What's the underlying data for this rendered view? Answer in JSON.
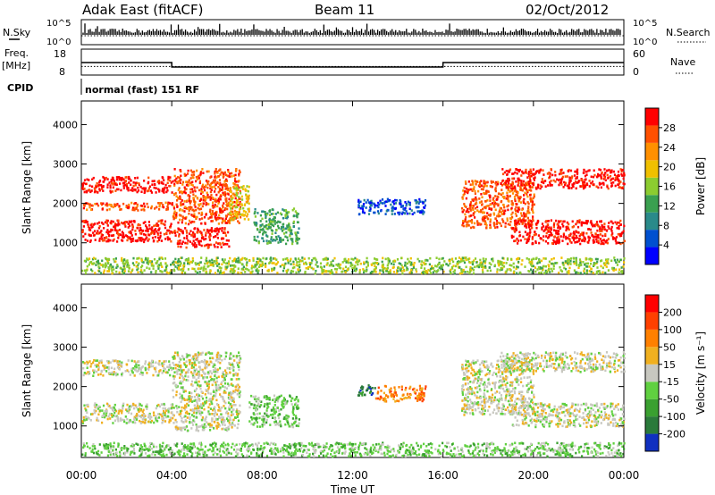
{
  "header": {
    "station": "Adak East (fitACF)",
    "beam": "Beam 11",
    "date": "02/Oct/2012"
  },
  "sky_panel": {
    "left_label": "N.Sky",
    "right_label": "N.Search",
    "left_ticks": [
      "10^5",
      "10^0"
    ],
    "right_ticks": [
      "10^5",
      "10^0"
    ]
  },
  "freq_panel": {
    "left_label_line1": "Freq.",
    "left_label_line2": "[MHz]",
    "right_label": "Nave",
    "left_ticks": [
      "18",
      "8"
    ],
    "right_ticks": [
      "60",
      "0"
    ],
    "cpid_label": "CPID",
    "mode_text": "normal (fast) 151 RF",
    "freq_segments": [
      {
        "from_hour": 0,
        "to_hour": 4,
        "mhz": 13.0
      },
      {
        "from_hour": 4,
        "to_hour": 16,
        "mhz": 10.5
      },
      {
        "from_hour": 16,
        "to_hour": 24,
        "mhz": 13.0
      }
    ],
    "nave_level": 20
  },
  "chart_data": [
    {
      "type": "heatmap",
      "name": "power",
      "ylabel": "Slant Range [km]",
      "y_ticks": [
        "1000",
        "2000",
        "3000",
        "4000"
      ],
      "ylim": [
        200,
        4600
      ],
      "xlim": [
        0,
        24
      ],
      "colorbar": {
        "label": "Power [dB]",
        "ticks": [
          "28",
          "24",
          "20",
          "16",
          "12",
          "8",
          "4"
        ],
        "colors": [
          "#0000ff",
          "#0050d0",
          "#2a8a8a",
          "#3aa050",
          "#8ccc30",
          "#f0c000",
          "#ff9000",
          "#ff5000",
          "#ff0000"
        ]
      },
      "regions": [
        {
          "x0": 0.0,
          "x1": 4.0,
          "y0": 2300,
          "y1": 2700,
          "level": 8
        },
        {
          "x0": 0.0,
          "x1": 4.0,
          "y0": 1050,
          "y1": 1600,
          "level": 8
        },
        {
          "x0": 0.0,
          "x1": 4.0,
          "y0": 1850,
          "y1": 2050,
          "level": 7
        },
        {
          "x0": 4.0,
          "x1": 7.0,
          "y0": 1500,
          "y1": 2900,
          "level": 7
        },
        {
          "x0": 4.0,
          "x1": 6.5,
          "y0": 900,
          "y1": 1400,
          "level": 8
        },
        {
          "x0": 6.5,
          "x1": 7.4,
          "y0": 1600,
          "y1": 2500,
          "level": 5
        },
        {
          "x0": 7.6,
          "x1": 9.6,
          "y0": 1000,
          "y1": 1900,
          "level": 3
        },
        {
          "x0": 12.2,
          "x1": 15.2,
          "y0": 1750,
          "y1": 2150,
          "level": 1
        },
        {
          "x0": 16.8,
          "x1": 20.0,
          "y0": 1400,
          "y1": 2600,
          "level": 7
        },
        {
          "x0": 18.5,
          "x1": 24.0,
          "y0": 2400,
          "y1": 2900,
          "level": 8
        },
        {
          "x0": 19.0,
          "x1": 24.0,
          "y0": 1000,
          "y1": 1600,
          "level": 8
        },
        {
          "x0": 0.0,
          "x1": 24.0,
          "y0": 250,
          "y1": 650,
          "level": 4
        }
      ]
    },
    {
      "type": "heatmap",
      "name": "velocity",
      "ylabel": "Slant Range [km]",
      "y_ticks": [
        "1000",
        "2000",
        "3000",
        "4000"
      ],
      "ylim": [
        200,
        4600
      ],
      "xlim": [
        0,
        24
      ],
      "x_ticks": [
        "00:00",
        "04:00",
        "08:00",
        "12:00",
        "16:00",
        "20:00",
        "00:00"
      ],
      "xlabel": "Time UT",
      "colorbar": {
        "label": "Velocity [m s⁻¹]",
        "ticks": [
          "200",
          "100",
          "50",
          "15",
          "-15",
          "-50",
          "-100",
          "-200"
        ],
        "colors": [
          "#1030c0",
          "#2a7a3a",
          "#3aa030",
          "#60d040",
          "#c8c8c0",
          "#f0b020",
          "#ff8000",
          "#ff4000",
          "#ff0000"
        ]
      },
      "regions": [
        {
          "x0": 0.0,
          "x1": 4.0,
          "y0": 2300,
          "y1": 2700,
          "level": 4
        },
        {
          "x0": 0.0,
          "x1": 4.0,
          "y0": 1100,
          "y1": 1600,
          "level": 4
        },
        {
          "x0": 4.0,
          "x1": 7.0,
          "y0": 900,
          "y1": 2900,
          "level": 4
        },
        {
          "x0": 7.4,
          "x1": 9.6,
          "y0": 1000,
          "y1": 1800,
          "level": 3
        },
        {
          "x0": 12.2,
          "x1": 13.0,
          "y0": 1800,
          "y1": 2100,
          "level": 1
        },
        {
          "x0": 13.0,
          "x1": 15.2,
          "y0": 1650,
          "y1": 2050,
          "level": 6
        },
        {
          "x0": 16.8,
          "x1": 20.0,
          "y0": 1300,
          "y1": 2700,
          "level": 4
        },
        {
          "x0": 18.5,
          "x1": 24.0,
          "y0": 2400,
          "y1": 2900,
          "level": 4
        },
        {
          "x0": 19.0,
          "x1": 24.0,
          "y0": 1000,
          "y1": 1600,
          "level": 4
        },
        {
          "x0": 0.0,
          "x1": 24.0,
          "y0": 250,
          "y1": 600,
          "level": 3
        }
      ]
    }
  ]
}
